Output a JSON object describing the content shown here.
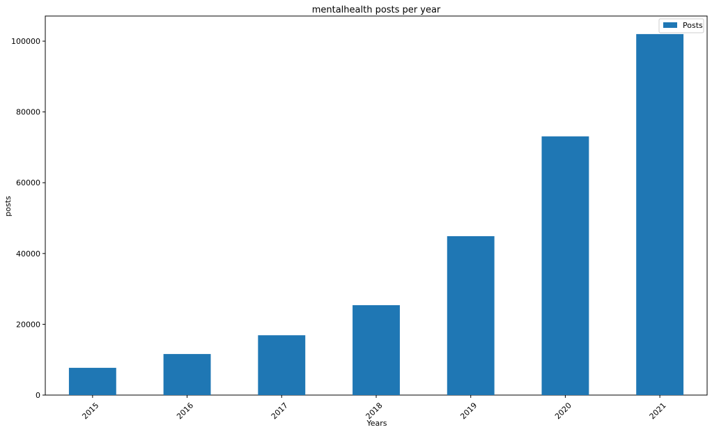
{
  "chart_data": {
    "type": "bar",
    "title": "mentalhealth posts per year",
    "xlabel": "Years",
    "ylabel": "posts",
    "categories": [
      "2015",
      "2016",
      "2017",
      "2018",
      "2019",
      "2020",
      "2021"
    ],
    "series": [
      {
        "name": "Posts",
        "color": "#1f77b4",
        "values": [
          7700,
          11600,
          16900,
          25400,
          44900,
          73100,
          102000
        ]
      }
    ],
    "ylim": [
      0,
      107100
    ],
    "yticks": [
      0,
      20000,
      40000,
      60000,
      80000,
      100000
    ],
    "ytick_labels": [
      "0",
      "20000",
      "40000",
      "60000",
      "80000",
      "100000"
    ],
    "grid": false,
    "legend_position": "top-right"
  }
}
